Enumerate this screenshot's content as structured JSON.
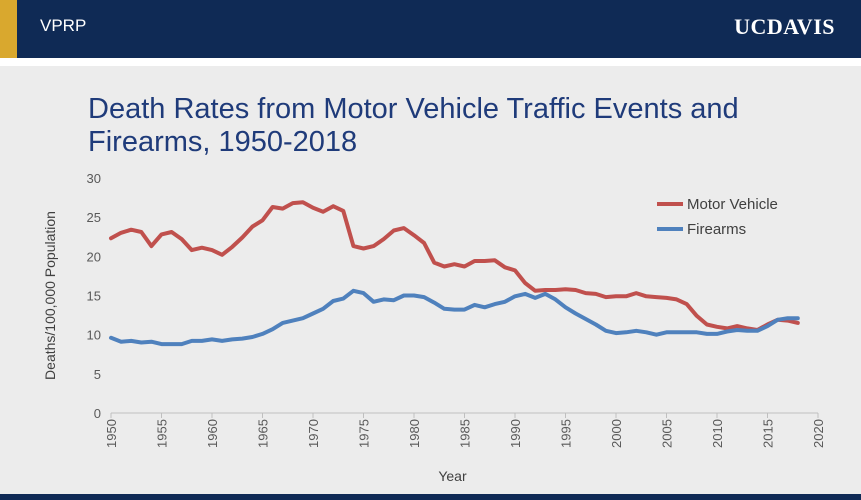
{
  "header": {
    "org": "VPRP",
    "logo": "UCDAVIS"
  },
  "chart_data": {
    "type": "line",
    "title": "Death Rates from Motor Vehicle Traffic Events and Firearms, 1950-2018",
    "xlabel": "Year",
    "ylabel": "Deaths/100,000 Population",
    "xlim": [
      1950,
      2020
    ],
    "ylim": [
      0,
      30
    ],
    "x_ticks": [
      1950,
      1955,
      1960,
      1965,
      1970,
      1975,
      1980,
      1985,
      1990,
      1995,
      2000,
      2005,
      2010,
      2015,
      2020
    ],
    "y_ticks": [
      0,
      5,
      10,
      15,
      20,
      25,
      30
    ],
    "grid": false,
    "legend_position": "top-right",
    "x": [
      1950,
      1951,
      1952,
      1953,
      1954,
      1955,
      1956,
      1957,
      1958,
      1959,
      1960,
      1961,
      1962,
      1963,
      1964,
      1965,
      1966,
      1967,
      1968,
      1969,
      1970,
      1971,
      1972,
      1973,
      1974,
      1975,
      1976,
      1977,
      1978,
      1979,
      1980,
      1981,
      1982,
      1983,
      1984,
      1985,
      1986,
      1987,
      1988,
      1989,
      1990,
      1991,
      1992,
      1993,
      1994,
      1995,
      1996,
      1997,
      1998,
      1999,
      2000,
      2001,
      2002,
      2003,
      2004,
      2005,
      2006,
      2007,
      2008,
      2009,
      2010,
      2011,
      2012,
      2013,
      2014,
      2015,
      2016,
      2017,
      2018
    ],
    "series": [
      {
        "name": "Motor Vehicle",
        "color": "#c0504d",
        "values": [
          22.3,
          23.0,
          23.4,
          23.1,
          21.3,
          22.8,
          23.1,
          22.2,
          20.8,
          21.1,
          20.8,
          20.2,
          21.2,
          22.4,
          23.8,
          24.6,
          26.3,
          26.1,
          26.8,
          26.9,
          26.2,
          25.7,
          26.4,
          25.8,
          21.3,
          21.0,
          21.3,
          22.2,
          23.3,
          23.6,
          22.7,
          21.7,
          19.2,
          18.7,
          19.0,
          18.7,
          19.4,
          19.4,
          19.5,
          18.6,
          18.2,
          16.6,
          15.6,
          15.7,
          15.7,
          15.8,
          15.7,
          15.3,
          15.2,
          14.8,
          14.9,
          14.9,
          15.3,
          14.9,
          14.8,
          14.7,
          14.5,
          13.9,
          12.4,
          11.3,
          11.0,
          10.8,
          11.1,
          10.8,
          10.6,
          11.3,
          11.9,
          11.8,
          11.5
        ]
      },
      {
        "name": "Firearms",
        "color": "#4f81bd",
        "values": [
          9.6,
          9.1,
          9.2,
          9.0,
          9.1,
          8.8,
          8.8,
          8.8,
          9.2,
          9.2,
          9.4,
          9.2,
          9.4,
          9.5,
          9.7,
          10.1,
          10.7,
          11.5,
          11.8,
          12.1,
          12.7,
          13.3,
          14.3,
          14.6,
          15.6,
          15.3,
          14.2,
          14.5,
          14.4,
          15.0,
          15.0,
          14.8,
          14.1,
          13.3,
          13.2,
          13.2,
          13.8,
          13.5,
          13.9,
          14.2,
          14.9,
          15.2,
          14.7,
          15.2,
          14.5,
          13.5,
          12.7,
          12.0,
          11.3,
          10.5,
          10.2,
          10.3,
          10.5,
          10.3,
          10.0,
          10.3,
          10.3,
          10.3,
          10.3,
          10.1,
          10.1,
          10.4,
          10.6,
          10.5,
          10.5,
          11.1,
          11.9,
          12.1,
          12.1
        ]
      }
    ]
  }
}
